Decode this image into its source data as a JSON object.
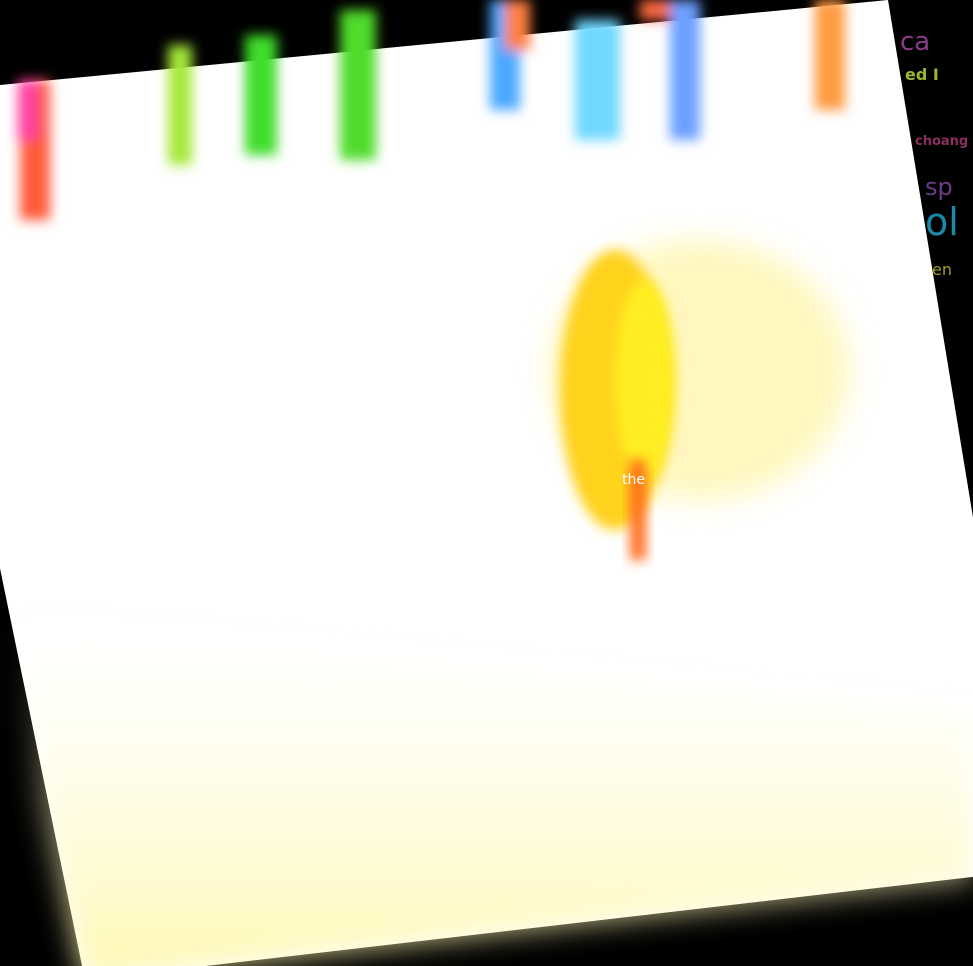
{
  "fragments": [
    "ca",
    "ed I",
    "choang",
    "sp",
    "ol",
    "en",
    "the"
  ]
}
